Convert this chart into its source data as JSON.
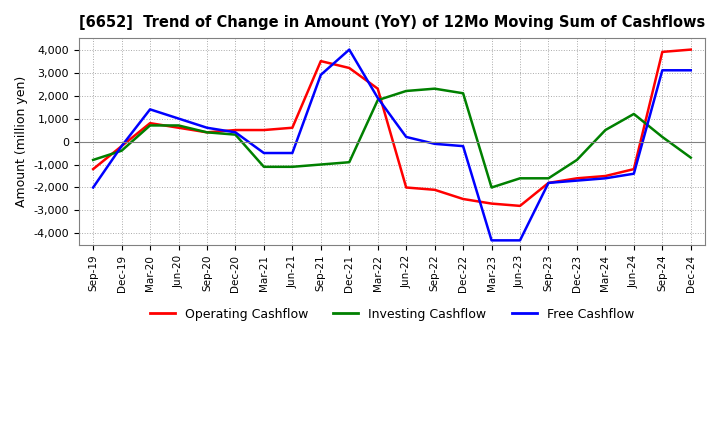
{
  "title": "[6652]  Trend of Change in Amount (YoY) of 12Mo Moving Sum of Cashflows",
  "ylabel": "Amount (million yen)",
  "ylim": [
    -4500,
    4500
  ],
  "yticks": [
    -4000,
    -3000,
    -2000,
    -1000,
    0,
    1000,
    2000,
    3000,
    4000
  ],
  "x_labels": [
    "Sep-19",
    "Dec-19",
    "Mar-20",
    "Jun-20",
    "Sep-20",
    "Dec-20",
    "Mar-21",
    "Jun-21",
    "Sep-21",
    "Dec-21",
    "Mar-22",
    "Jun-22",
    "Sep-22",
    "Dec-22",
    "Mar-23",
    "Jun-23",
    "Sep-23",
    "Dec-23",
    "Mar-24",
    "Jun-24",
    "Sep-24",
    "Dec-24"
  ],
  "operating": [
    -1200,
    -200,
    800,
    600,
    400,
    500,
    500,
    600,
    3500,
    3200,
    2300,
    -2000,
    -2100,
    -2500,
    -2700,
    -2800,
    -1800,
    -1600,
    -1500,
    -1200,
    3900,
    4000
  ],
  "investing": [
    -800,
    -400,
    700,
    700,
    400,
    300,
    -1100,
    -1100,
    -1000,
    -900,
    1800,
    2200,
    2300,
    2100,
    -2000,
    -1600,
    -1600,
    -800,
    500,
    1200,
    200,
    -700
  ],
  "free": [
    -2000,
    -200,
    1400,
    1000,
    600,
    400,
    -500,
    -500,
    2900,
    4000,
    1900,
    200,
    -100,
    -200,
    -4300,
    -4300,
    -1800,
    -1700,
    -1600,
    -1400,
    3100,
    3100
  ],
  "colors": {
    "operating": "#ff0000",
    "investing": "#008000",
    "free": "#0000ff"
  },
  "legend_labels": [
    "Operating Cashflow",
    "Investing Cashflow",
    "Free Cashflow"
  ],
  "background_color": "#ffffff",
  "grid_color": "#aaaaaa"
}
